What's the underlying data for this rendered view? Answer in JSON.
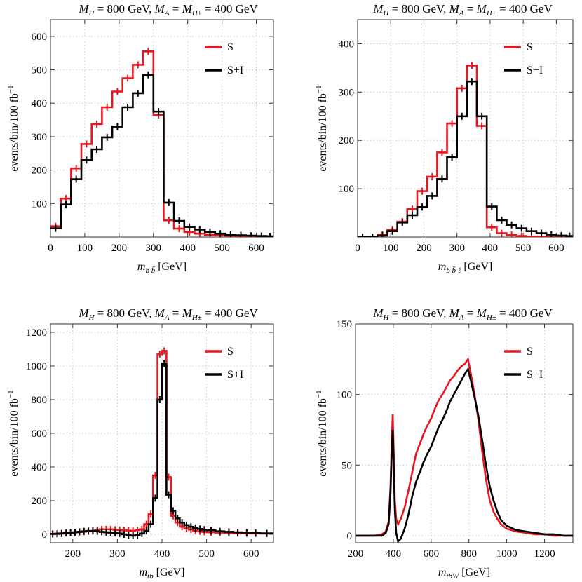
{
  "chart_data": [
    {
      "type": "line",
      "panel": "top-left",
      "title": "M_H = 800 GeV, M_A = M_H± = 400 GeV",
      "xlabel_var": "m_{b b̄}",
      "xlabel": "m_{b b̄}  [GeV]",
      "xlabel_unit": "[GeV]",
      "ylabel": "events/bin/100 fb⁻¹",
      "xlim": [
        0,
        650
      ],
      "ylim": [
        0,
        650
      ],
      "xticks": [
        0,
        100,
        200,
        300,
        400,
        500,
        600
      ],
      "yticks": [
        100,
        200,
        300,
        400,
        500,
        600
      ],
      "xtick_labels": [
        "0",
        "100",
        "200",
        "300",
        "400",
        "500",
        "600"
      ],
      "ytick_labels": [
        "100",
        "200",
        "300",
        "400",
        "500",
        "600"
      ],
      "legend": [
        "S",
        "S+I"
      ],
      "legend_position": "top-right",
      "bin_edges": [
        0,
        30,
        60,
        90,
        120,
        150,
        180,
        210,
        240,
        270,
        300,
        330,
        360,
        390,
        420,
        450,
        480,
        510,
        540,
        570,
        600,
        630,
        650
      ],
      "series": [
        {
          "name": "S",
          "color": "#e8161e",
          "values": [
            32,
            115,
            205,
            278,
            338,
            388,
            435,
            475,
            515,
            555,
            365,
            50,
            25,
            15,
            10,
            7,
            5,
            4,
            3,
            2,
            2,
            2
          ]
        },
        {
          "name": "S+I",
          "color": "#000000",
          "values": [
            26,
            97,
            173,
            230,
            262,
            298,
            330,
            388,
            430,
            485,
            375,
            103,
            48,
            30,
            22,
            15,
            10,
            7,
            5,
            4,
            3,
            2
          ]
        }
      ]
    },
    {
      "type": "line",
      "panel": "top-right",
      "title": "M_H = 800 GeV, M_A = M_H± = 400 GeV",
      "xlabel_var": "m_{b b̄ ℓ}",
      "xlabel": "m_{b b̄ ℓ}  [GeV]",
      "xlabel_unit": "[GeV]",
      "ylabel": "events/bin/100 fb⁻¹",
      "xlim": [
        0,
        650
      ],
      "ylim": [
        0,
        450
      ],
      "xticks": [
        0,
        100,
        200,
        300,
        400,
        500,
        600
      ],
      "yticks": [
        100,
        200,
        300,
        400
      ],
      "xtick_labels": [
        "0",
        "100",
        "200",
        "300",
        "400",
        "500",
        "600"
      ],
      "ytick_labels": [
        "100",
        "200",
        "300",
        "400"
      ],
      "legend": [
        "S",
        "S+I"
      ],
      "legend_position": "top-right",
      "bin_edges": [
        0,
        30,
        60,
        90,
        120,
        150,
        180,
        210,
        240,
        270,
        300,
        330,
        360,
        390,
        420,
        450,
        480,
        510,
        540,
        570,
        600,
        630,
        650
      ],
      "series": [
        {
          "name": "S",
          "color": "#e8161e",
          "values": [
            0,
            0,
            5,
            15,
            32,
            58,
            95,
            125,
            175,
            235,
            308,
            355,
            230,
            20,
            8,
            4,
            2,
            1,
            1,
            0,
            0,
            0
          ]
        },
        {
          "name": "S+I",
          "color": "#000000",
          "values": [
            0,
            0,
            3,
            12,
            30,
            45,
            62,
            85,
            120,
            165,
            250,
            322,
            250,
            63,
            35,
            25,
            18,
            12,
            8,
            5,
            3,
            2
          ]
        }
      ]
    },
    {
      "type": "line",
      "panel": "bottom-left",
      "title": "M_H = 800 GeV, M_A = M_H± = 400 GeV",
      "xlabel_var": "m_{tb}",
      "xlabel": "m_{tb}  [GeV]",
      "xlabel_unit": "[GeV]",
      "ylabel": "events/bin/100 fb⁻¹",
      "xlim": [
        150,
        650
      ],
      "ylim": [
        -50,
        1250
      ],
      "xticks": [
        200,
        300,
        400,
        500,
        600
      ],
      "yticks": [
        0,
        200,
        400,
        600,
        800,
        1000,
        1200
      ],
      "xtick_labels": [
        "200",
        "300",
        "400",
        "500",
        "600"
      ],
      "ytick_labels": [
        "0",
        "200",
        "400",
        "600",
        "800",
        "1000",
        "1200"
      ],
      "legend": [
        "S",
        "S+I"
      ],
      "legend_position": "top-right",
      "bin_edges": [
        150,
        160,
        170,
        180,
        190,
        200,
        210,
        220,
        230,
        240,
        250,
        260,
        270,
        280,
        290,
        300,
        310,
        320,
        330,
        340,
        350,
        360,
        370,
        380,
        390,
        400,
        410,
        420,
        430,
        440,
        450,
        460,
        470,
        480,
        490,
        500,
        520,
        540,
        560,
        580,
        600,
        620,
        650
      ],
      "series": [
        {
          "name": "S",
          "color": "#e8161e",
          "values": [
            3,
            5,
            6,
            8,
            10,
            12,
            14,
            16,
            18,
            20,
            25,
            30,
            30,
            30,
            28,
            26,
            24,
            22,
            20,
            25,
            30,
            60,
            120,
            350,
            1070,
            1090,
            340,
            110,
            70,
            45,
            35,
            28,
            22,
            18,
            15,
            12,
            10,
            8,
            7,
            6,
            5,
            4
          ]
        },
        {
          "name": "S+I",
          "color": "#000000",
          "values": [
            2,
            3,
            5,
            8,
            10,
            12,
            15,
            18,
            20,
            20,
            18,
            15,
            12,
            10,
            8,
            5,
            0,
            -5,
            -8,
            -5,
            5,
            20,
            60,
            215,
            800,
            1015,
            235,
            140,
            95,
            70,
            55,
            45,
            38,
            32,
            28,
            24,
            18,
            15,
            12,
            10,
            8,
            6
          ]
        }
      ]
    },
    {
      "type": "line",
      "panel": "bottom-right",
      "title": "M_H = 800 GeV, M_A = M_H± = 400 GeV",
      "xlabel_var": "m_{tbW}",
      "xlabel": "m_{tbW}  [GeV]",
      "xlabel_unit": "[GeV]",
      "ylabel": "events/bin/100 fb⁻¹",
      "xlim": [
        200,
        1350
      ],
      "ylim": [
        -5,
        150
      ],
      "xticks": [
        200,
        400,
        600,
        800,
        1000,
        1200
      ],
      "yticks": [
        0,
        50,
        100,
        150
      ],
      "xtick_labels": [
        "200",
        "400",
        "600",
        "800",
        "1000",
        "1200"
      ],
      "ytick_labels": [
        "0",
        "50",
        "100",
        "150"
      ],
      "legend": [
        "S",
        "S+I"
      ],
      "legend_position": "top-right",
      "x": [
        200,
        300,
        340,
        360,
        375,
        385,
        392,
        397,
        402,
        408,
        415,
        425,
        440,
        460,
        480,
        500,
        520,
        540,
        560,
        580,
        600,
        620,
        640,
        660,
        680,
        700,
        720,
        740,
        760,
        780,
        795,
        810,
        830,
        850,
        870,
        890,
        910,
        930,
        950,
        970,
        1000,
        1050,
        1100,
        1150,
        1200,
        1250,
        1300,
        1350
      ],
      "series": [
        {
          "name": "S",
          "color": "#e8161e",
          "values": [
            0,
            0,
            1,
            3,
            10,
            35,
            70,
            86,
            60,
            25,
            12,
            8,
            12,
            20,
            32,
            45,
            58,
            65,
            72,
            78,
            83,
            90,
            96,
            100,
            105,
            110,
            113,
            117,
            120,
            122,
            125,
            115,
            100,
            82,
            60,
            40,
            25,
            17,
            12,
            8,
            5,
            3,
            2,
            1,
            1,
            0,
            0,
            0
          ]
        },
        {
          "name": "S+I",
          "color": "#000000",
          "values": [
            0,
            0,
            0,
            2,
            8,
            30,
            60,
            75,
            50,
            18,
            2,
            -4,
            -2,
            5,
            15,
            28,
            38,
            45,
            52,
            58,
            63,
            70,
            77,
            82,
            88,
            95,
            100,
            105,
            110,
            115,
            118,
            110,
            98,
            85,
            68,
            50,
            35,
            25,
            17,
            11,
            7,
            4,
            3,
            2,
            1,
            1,
            0,
            0
          ]
        }
      ]
    }
  ]
}
